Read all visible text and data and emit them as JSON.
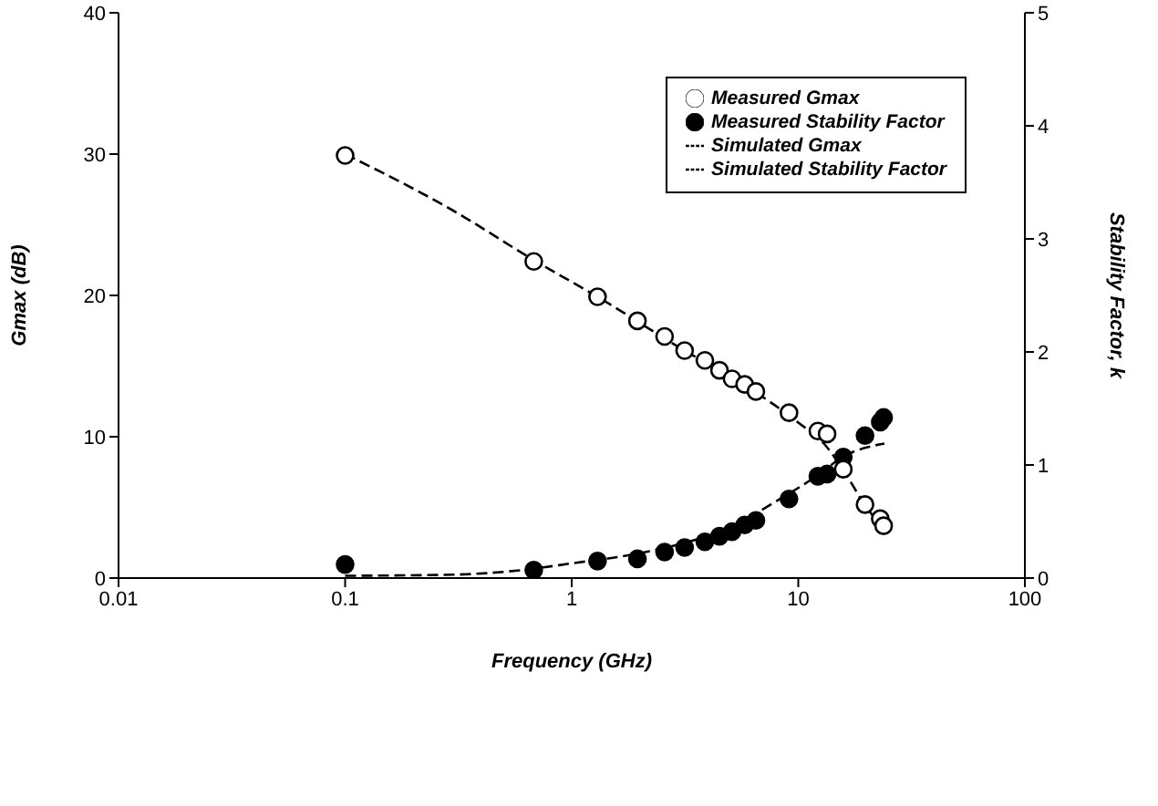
{
  "chart_data": {
    "type": "scatter",
    "xlabel": "Frequency (GHz)",
    "ylabel": "Gmax (dB)",
    "y2label": "Stability Factor, k",
    "log": "x",
    "xlim": [
      0.01,
      100
    ],
    "xticks": [
      0.01,
      0.1,
      1,
      10,
      100
    ],
    "ylim": [
      0,
      40
    ],
    "yticks": [
      0,
      10,
      20,
      30,
      40
    ],
    "y2lim": [
      0,
      5
    ],
    "y2ticks": [
      0,
      1,
      2,
      3,
      4,
      5
    ],
    "grid": false,
    "legend": "top right",
    "series": [
      {
        "name": "Simulated Stability Factor",
        "type": "line",
        "axis": "y2",
        "color": "#000000",
        "line_style": "dashed",
        "marker": "none",
        "x": [
          0.1,
          0.3,
          0.6,
          1,
          2,
          3,
          5,
          8,
          12,
          16,
          24
        ],
        "values": [
          0.02,
          0.03,
          0.07,
          0.13,
          0.22,
          0.3,
          0.45,
          0.68,
          0.9,
          1.08,
          1.19
        ]
      },
      {
        "name": "Simulated Gmax",
        "type": "line",
        "color": "#000000",
        "line_style": "dashed",
        "marker": "none",
        "x": [
          0.1,
          0.3,
          0.68,
          1.3,
          3,
          6,
          10,
          13,
          16,
          20,
          24
        ],
        "values": [
          30,
          26,
          22.5,
          19.9,
          16.3,
          13.5,
          11,
          9.5,
          7.5,
          5,
          3.5
        ]
      },
      {
        "name": "Measured Stability Factor",
        "axis": "y2",
        "color": "#000000",
        "marker": "circle",
        "x": [
          0.1,
          0.68,
          1.3,
          1.95,
          2.57,
          3.15,
          3.87,
          4.49,
          5.1,
          5.8,
          6.5,
          9.1,
          12.2,
          13.4,
          15.8,
          19.7,
          23,
          23.8
        ],
        "values": [
          0.12,
          0.07,
          0.15,
          0.17,
          0.23,
          0.27,
          0.32,
          0.37,
          0.41,
          0.47,
          0.51,
          0.7,
          0.9,
          0.92,
          1.07,
          1.26,
          1.38,
          1.42
        ]
      },
      {
        "name": "Measured Gmax",
        "color": "#ffffff",
        "marker": "circle",
        "x": [
          0.1,
          0.68,
          1.3,
          1.95,
          2.57,
          3.15,
          3.87,
          4.49,
          5.1,
          5.8,
          6.5,
          9.1,
          12.2,
          13.4,
          15.8,
          19.7,
          23,
          23.8
        ],
        "values": [
          29.9,
          22.4,
          19.9,
          18.2,
          17.1,
          16.1,
          15.4,
          14.7,
          14.1,
          13.7,
          13.2,
          11.7,
          10.4,
          10.2,
          7.7,
          5.2,
          4.2,
          3.7
        ]
      }
    ]
  }
}
